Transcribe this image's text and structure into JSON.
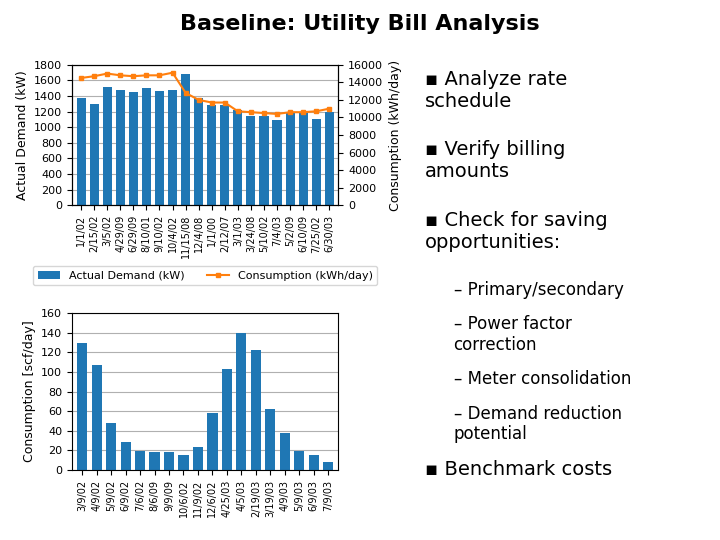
{
  "title": "Baseline: Utility Bill Analysis",
  "chart_data": [
    {
      "type": "bar",
      "categories": [
        "1/1/02",
        "2/15/02",
        "3/5/02",
        "4/29/09",
        "6/29/09",
        "8/10/01",
        "9/10/02",
        "10/4/02",
        "11/15/08",
        "12/4/08",
        "1/1/00",
        "2/12/07",
        "3/1/03",
        "3/24/08",
        "5/10/02",
        "7/4/03",
        "5/2/09",
        "6/10/09",
        "7/25/02",
        "6/30/03"
      ],
      "series": [
        {
          "name": "Actual Demand (kW)",
          "type": "bar",
          "values": [
            1380,
            1300,
            1520,
            1480,
            1450,
            1500,
            1460,
            1480,
            1680,
            1380,
            1280,
            1280,
            1220,
            1150,
            1140,
            1090,
            1180,
            1200,
            1110,
            1200
          ]
        },
        {
          "name": "Consumption (kWh/day)",
          "type": "line",
          "marker": "square",
          "axis": "y2",
          "values": [
            14500,
            14700,
            15000,
            14800,
            14700,
            14800,
            14800,
            15100,
            12800,
            12000,
            11700,
            11700,
            10700,
            10600,
            10500,
            10400,
            10600,
            10600,
            10700,
            11000
          ]
        }
      ],
      "y_label": "Actual Demand (kW)",
      "y2_label": "Consumption (kWh/day)",
      "ylim": [
        0,
        1800
      ],
      "yticks": [
        0,
        200,
        400,
        600,
        800,
        1000,
        1200,
        1400,
        1600,
        1800
      ],
      "y2lim": [
        0,
        16000
      ],
      "y2ticks": [
        0,
        2000,
        4000,
        6000,
        8000,
        10000,
        12000,
        14000,
        16000
      ],
      "grid": true,
      "legend": "lower center"
    },
    {
      "type": "bar",
      "categories": [
        "3/9/02",
        "4/9/02",
        "5/9/02",
        "6/9/02",
        "7/6/02",
        "8/6/09",
        "9/9/09",
        "10/6/02",
        "11/9/02",
        "12/6/02",
        "4/25/03",
        "4/5/03",
        "2/19/03",
        "3/19/03",
        "4/9/03",
        "5/9/03",
        "6/9/03",
        "7/9/03"
      ],
      "values": [
        130,
        107,
        48,
        28,
        19,
        18,
        18,
        15,
        23,
        58,
        103,
        140,
        122,
        62,
        38,
        19,
        15,
        8
      ],
      "y_label": "Consumption [scf/day]",
      "ylim": [
        0,
        160
      ],
      "yticks": [
        0,
        20,
        40,
        60,
        80,
        100,
        120,
        140,
        160
      ],
      "grid": true
    }
  ],
  "annotations": [
    "▪ Analyze rate\nschedule",
    "▪ Verify billing\namounts",
    "▪ Check for saving\nopportunities:",
    "– Primary/secondary",
    "– Power factor\ncorrection",
    "– Meter consolidation",
    "– Demand reduction\npotential",
    "▪ Benchmark costs"
  ]
}
